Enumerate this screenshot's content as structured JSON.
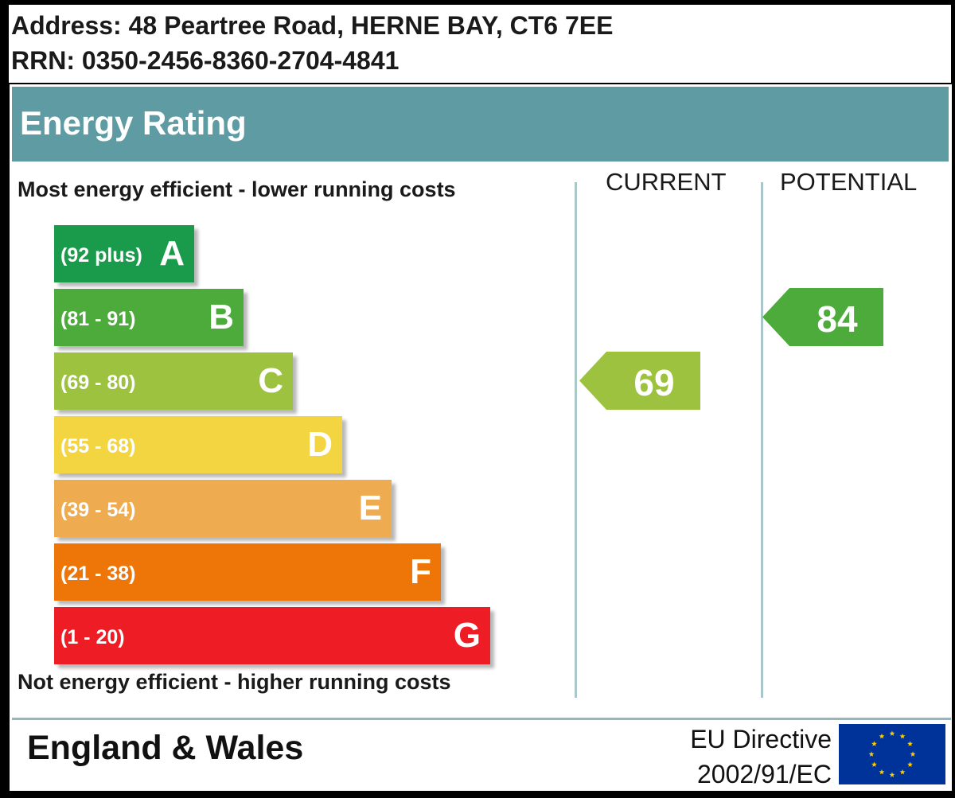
{
  "header": {
    "address": "Address: 48 Peartree Road, HERNE BAY, CT6 7EE",
    "rrn": "RRN: 0350-2456-8360-2704-4841"
  },
  "title": "Energy Rating",
  "captions": {
    "top": "Most energy efficient - lower running costs",
    "bottom": "Not energy efficient - higher running costs"
  },
  "columns": {
    "current": "CURRENT",
    "potential": "POTENTIAL"
  },
  "footer": {
    "region": "England & Wales",
    "directive_line1": "EU Directive",
    "directive_line2": "2002/91/EC"
  },
  "colors": {
    "title_bar": "#5e9ba2",
    "A": "#1a9a4b",
    "B": "#4dab3c",
    "C": "#9dc240",
    "D": "#f2d541",
    "E": "#eeab4f",
    "F": "#ee7508",
    "G": "#ee1c24",
    "current_arrow": "#9dc240",
    "potential_arrow": "#4dab3c",
    "eu_blue": "#003399",
    "eu_star": "#ffcc00"
  },
  "chart_data": {
    "type": "bar",
    "categories": [
      "A",
      "B",
      "C",
      "D",
      "E",
      "F",
      "G"
    ],
    "ranges": [
      "(92 plus)",
      "(81 - 91)",
      "(69 - 80)",
      "(55 - 68)",
      "(39 - 54)",
      "(21 - 38)",
      "(1 - 20)"
    ],
    "current": {
      "value": 69,
      "band": "C"
    },
    "potential": {
      "value": 84,
      "band": "B"
    }
  }
}
